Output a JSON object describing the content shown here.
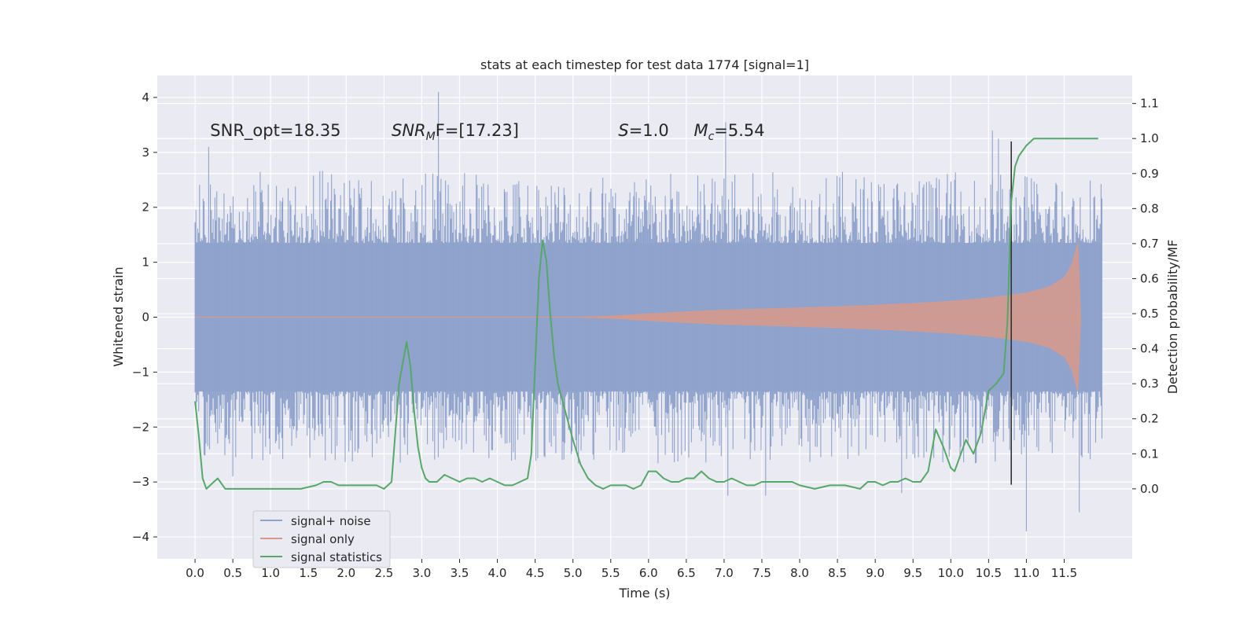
{
  "chart_data": {
    "type": "line",
    "title": "stats at each timestep for test data 1774 [signal=1]",
    "xlabel": "Time (s)",
    "ylabel_left": "Whitened strain",
    "ylabel_right": "Detection probability/MF",
    "xlim": [
      -0.5,
      12.4
    ],
    "ylim_left": [
      -4.4,
      4.4
    ],
    "ylim_right": [
      -0.2,
      1.18
    ],
    "x_ticks": [
      0.0,
      0.5,
      1.0,
      1.5,
      2.0,
      2.5,
      3.0,
      3.5,
      4.0,
      4.5,
      5.0,
      5.5,
      6.0,
      6.5,
      7.0,
      7.5,
      8.0,
      8.5,
      9.0,
      9.5,
      10.0,
      10.5,
      11.0,
      11.5
    ],
    "x_tick_labels": [
      "0.0",
      "0.5",
      "1.0",
      "1.5",
      "2.0",
      "2.5",
      "3.0",
      "3.5",
      "4.0",
      "4.5",
      "5.0",
      "5.5",
      "6.0",
      "6.5",
      "7.0",
      "7.5",
      "8.0",
      "8.5",
      "9.0",
      "9.5",
      "10.0",
      "10.5",
      "11.0",
      "11.5"
    ],
    "y_left_ticks": [
      -4,
      -3,
      -2,
      -1,
      0,
      1,
      2,
      3,
      4
    ],
    "y_left_tick_labels": [
      "−4",
      "−3",
      "−2",
      "−1",
      "0",
      "1",
      "2",
      "3",
      "4"
    ],
    "y_right_ticks": [
      0.0,
      0.1,
      0.2,
      0.3,
      0.4,
      0.5,
      0.6,
      0.7,
      0.8,
      0.9,
      1.0,
      1.1
    ],
    "y_right_tick_labels": [
      "0.0",
      "0.1",
      "0.2",
      "0.3",
      "0.4",
      "0.5",
      "0.6",
      "0.7",
      "0.8",
      "0.9",
      "1.0",
      "1.1"
    ],
    "grid": true,
    "legend_position": "lower-left",
    "annotations": [
      {
        "text": "SNR_opt=18.35",
        "x": 0.2,
        "y": 3.3
      },
      {
        "text": "SNR",
        "sub": "M",
        "rest": "F=[17.23]",
        "italic_main": true,
        "x": 2.6,
        "y": 3.3
      },
      {
        "text": "S",
        "rest": "=1.0",
        "italic_main": true,
        "x": 5.6,
        "y": 3.3
      },
      {
        "text": "M",
        "sub": "c",
        "rest": "=5.54",
        "italic_main": true,
        "x": 6.6,
        "y": 3.3
      }
    ],
    "vertical_line": {
      "x": 10.8,
      "y_range": [
        -3.05,
        3.2
      ],
      "color": "#333333"
    },
    "series": [
      {
        "name": "signal+ noise",
        "color": "#8fa3cc",
        "axis": "left",
        "x_range": [
          0.0,
          12.0
        ],
        "band_upper": 1.35,
        "band_lower": -1.35,
        "typical_peak_upper": 2.4,
        "typical_peak_lower": -2.4,
        "extreme_spikes": [
          {
            "x": 0.18,
            "y": 3.1
          },
          {
            "x": 3.22,
            "y": 4.1
          },
          {
            "x": 7.02,
            "y": 3.55
          },
          {
            "x": 10.55,
            "y": 3.4
          },
          {
            "x": 10.63,
            "y": 3.25
          },
          {
            "x": 11.0,
            "y": -3.9
          },
          {
            "x": 11.7,
            "y": -3.55
          },
          {
            "x": 7.05,
            "y": -3.25
          },
          {
            "x": 7.55,
            "y": -3.25
          },
          {
            "x": 9.35,
            "y": -3.2
          },
          {
            "x": 0.5,
            "y": -2.9
          }
        ]
      },
      {
        "name": "signal only",
        "color": "#d9998a",
        "axis": "left",
        "envelope": [
          [
            5.0,
            0.0
          ],
          [
            5.5,
            0.02
          ],
          [
            6.0,
            0.06
          ],
          [
            6.5,
            0.1
          ],
          [
            7.0,
            0.13
          ],
          [
            7.5,
            0.15
          ],
          [
            8.0,
            0.17
          ],
          [
            8.5,
            0.19
          ],
          [
            9.0,
            0.22
          ],
          [
            9.5,
            0.25
          ],
          [
            10.0,
            0.29
          ],
          [
            10.5,
            0.35
          ],
          [
            11.0,
            0.44
          ],
          [
            11.3,
            0.55
          ],
          [
            11.5,
            0.72
          ],
          [
            11.6,
            0.95
          ],
          [
            11.68,
            1.35
          ],
          [
            11.72,
            0.0
          ]
        ]
      },
      {
        "name": "signal statistics",
        "color": "#55a868",
        "axis": "right",
        "x": [
          0.0,
          0.05,
          0.1,
          0.15,
          0.2,
          0.3,
          0.4,
          0.5,
          0.6,
          0.8,
          1.0,
          1.2,
          1.4,
          1.6,
          1.7,
          1.8,
          1.9,
          2.0,
          2.1,
          2.2,
          2.4,
          2.5,
          2.6,
          2.7,
          2.8,
          2.85,
          2.9,
          2.95,
          3.0,
          3.05,
          3.1,
          3.15,
          3.2,
          3.3,
          3.4,
          3.5,
          3.6,
          3.7,
          3.8,
          3.9,
          4.0,
          4.1,
          4.2,
          4.3,
          4.4,
          4.45,
          4.5,
          4.55,
          4.6,
          4.65,
          4.7,
          4.75,
          4.8,
          4.85,
          4.9,
          4.95,
          5.0,
          5.1,
          5.2,
          5.3,
          5.4,
          5.5,
          5.6,
          5.7,
          5.8,
          5.9,
          6.0,
          6.1,
          6.2,
          6.3,
          6.4,
          6.5,
          6.6,
          6.7,
          6.8,
          6.9,
          7.0,
          7.1,
          7.2,
          7.3,
          7.4,
          7.5,
          7.6,
          7.7,
          7.8,
          7.9,
          8.0,
          8.2,
          8.4,
          8.6,
          8.8,
          8.9,
          9.0,
          9.1,
          9.2,
          9.3,
          9.4,
          9.5,
          9.6,
          9.7,
          9.8,
          9.9,
          10.0,
          10.05,
          10.1,
          10.2,
          10.3,
          10.4,
          10.5,
          10.6,
          10.7,
          10.75,
          10.8,
          10.85,
          10.9,
          11.0,
          11.1,
          11.2,
          11.4,
          11.6,
          11.8,
          11.95
        ],
        "values": [
          0.25,
          0.15,
          0.03,
          0.0,
          0.01,
          0.03,
          0.0,
          0.0,
          0.0,
          0.0,
          0.0,
          0.0,
          0.0,
          0.01,
          0.02,
          0.02,
          0.01,
          0.01,
          0.01,
          0.01,
          0.01,
          0.0,
          0.02,
          0.3,
          0.42,
          0.35,
          0.22,
          0.12,
          0.06,
          0.03,
          0.02,
          0.02,
          0.02,
          0.04,
          0.03,
          0.02,
          0.03,
          0.03,
          0.02,
          0.03,
          0.02,
          0.01,
          0.01,
          0.02,
          0.03,
          0.1,
          0.35,
          0.6,
          0.71,
          0.65,
          0.5,
          0.38,
          0.3,
          0.26,
          0.22,
          0.18,
          0.14,
          0.07,
          0.03,
          0.01,
          0.0,
          0.01,
          0.01,
          0.01,
          0.0,
          0.01,
          0.05,
          0.05,
          0.03,
          0.02,
          0.02,
          0.03,
          0.03,
          0.05,
          0.03,
          0.02,
          0.02,
          0.03,
          0.02,
          0.01,
          0.01,
          0.02,
          0.02,
          0.02,
          0.02,
          0.02,
          0.01,
          0.0,
          0.01,
          0.01,
          0.0,
          0.02,
          0.02,
          0.01,
          0.02,
          0.02,
          0.03,
          0.02,
          0.02,
          0.05,
          0.17,
          0.12,
          0.06,
          0.05,
          0.08,
          0.14,
          0.1,
          0.16,
          0.28,
          0.3,
          0.33,
          0.48,
          0.82,
          0.92,
          0.95,
          0.98,
          1.0,
          1.0,
          1.0,
          1.0,
          1.0,
          1.0
        ]
      }
    ]
  }
}
